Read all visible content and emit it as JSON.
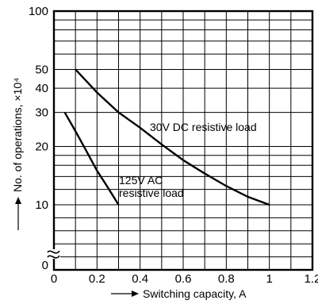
{
  "chart_data": {
    "type": "line",
    "title": "",
    "xlabel": "Switching capacity, A",
    "ylabel": "No. of operations, ×10⁴",
    "xlim": [
      0,
      1.2
    ],
    "ylim": [
      10,
      100
    ],
    "y_scale": "log",
    "y_axis_break": true,
    "grid": true,
    "x_ticks": [
      "0",
      "0.2",
      "0.4",
      "0.6",
      "0.8",
      "1",
      "1.2"
    ],
    "y_ticks": [
      "10",
      "20",
      "30",
      "40",
      "50",
      "100"
    ],
    "y_zero_label": "0",
    "series": [
      {
        "name": "30V DC resistive load",
        "x": [
          0.1,
          0.2,
          0.3,
          0.4,
          0.5,
          0.6,
          0.7,
          0.8,
          0.9,
          1.0
        ],
        "y": [
          50,
          38,
          30,
          25,
          20.5,
          17,
          14.5,
          12.5,
          11,
          10
        ]
      },
      {
        "name": "125V AC resistive load",
        "x": [
          0.05,
          0.1,
          0.15,
          0.2,
          0.25,
          0.3
        ],
        "y": [
          30,
          24,
          19,
          15,
          12.3,
          10
        ]
      }
    ],
    "annotations": [
      "30V DC resistive load",
      "125V AC",
      "resistive load"
    ]
  }
}
